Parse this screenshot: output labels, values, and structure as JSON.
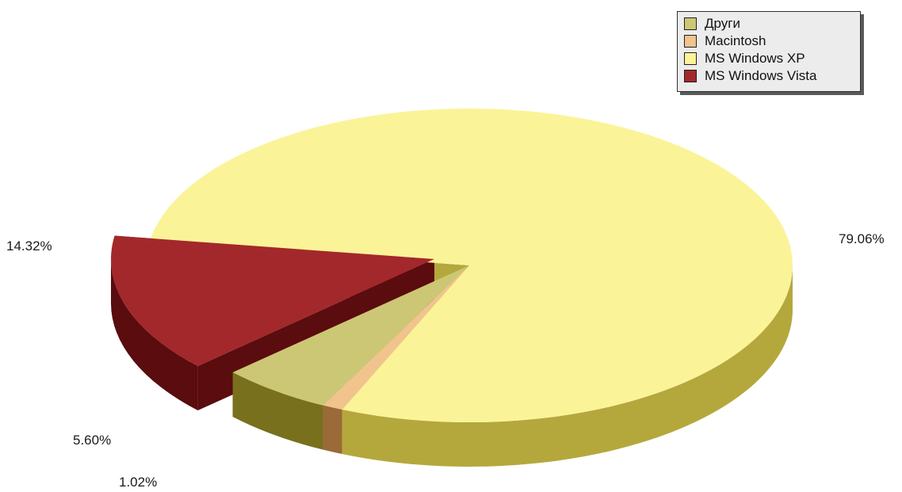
{
  "chart_data": {
    "type": "pie",
    "title": "",
    "legend_position": "top-right",
    "three_d": true,
    "slices": [
      {
        "label": "Други",
        "value": 5.6,
        "value_label": "5.60%",
        "color": "#ccc774",
        "side_color": "#78701c"
      },
      {
        "label": "Macintosh",
        "value": 1.02,
        "value_label": "1.02%",
        "color": "#f1c48e",
        "side_color": "#9a6a38"
      },
      {
        "label": "MS Windows XP",
        "value": 79.06,
        "value_label": "79.06%",
        "color": "#fbf398",
        "side_color": "#b4a83c"
      },
      {
        "label": "MS Windows Vista",
        "value": 14.32,
        "value_label": "14.32%",
        "color": "#a3282b",
        "side_color": "#5a0c0e"
      }
    ]
  }
}
